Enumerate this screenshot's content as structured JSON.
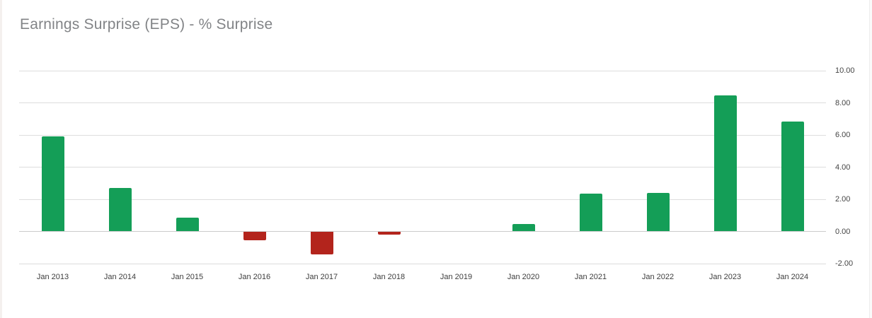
{
  "page": {
    "title": "Earnings Surprise (EPS) - % Surprise"
  },
  "chart_data": {
    "type": "bar",
    "title": "Earnings Surprise (EPS) - % Surprise",
    "categories": [
      "Jan 2013",
      "Jan 2014",
      "Jan 2015",
      "Jan 2016",
      "Jan 2017",
      "Jan 2018",
      "Jan 2019",
      "Jan 2020",
      "Jan 2021",
      "Jan 2022",
      "Jan 2023",
      "Jan 2024"
    ],
    "values": [
      5.9,
      2.7,
      0.85,
      -0.55,
      -1.45,
      -0.2,
      0,
      0.45,
      2.35,
      2.4,
      8.45,
      6.85
    ],
    "xlabel": "",
    "ylabel": "",
    "ylim": [
      -2,
      10
    ],
    "yticks": [
      {
        "value": 10,
        "label": "10.00"
      },
      {
        "value": 8,
        "label": "8.00"
      },
      {
        "value": 6,
        "label": "6.00"
      },
      {
        "value": 4,
        "label": "4.00"
      },
      {
        "value": 2,
        "label": "2.00"
      },
      {
        "value": 0,
        "label": "0.00"
      },
      {
        "value": -2,
        "label": "-2.00"
      }
    ],
    "grid": "horizontal-only",
    "legend": "none",
    "y_axis_position": "right",
    "colors": {
      "positive_bar": "#149e57",
      "negative_bar": "#b3241c",
      "gridline": "#dddddd",
      "zero_line": "#cccccc",
      "title_text": "#828487",
      "axis_text": "#454545",
      "background": "#ffffff"
    }
  }
}
